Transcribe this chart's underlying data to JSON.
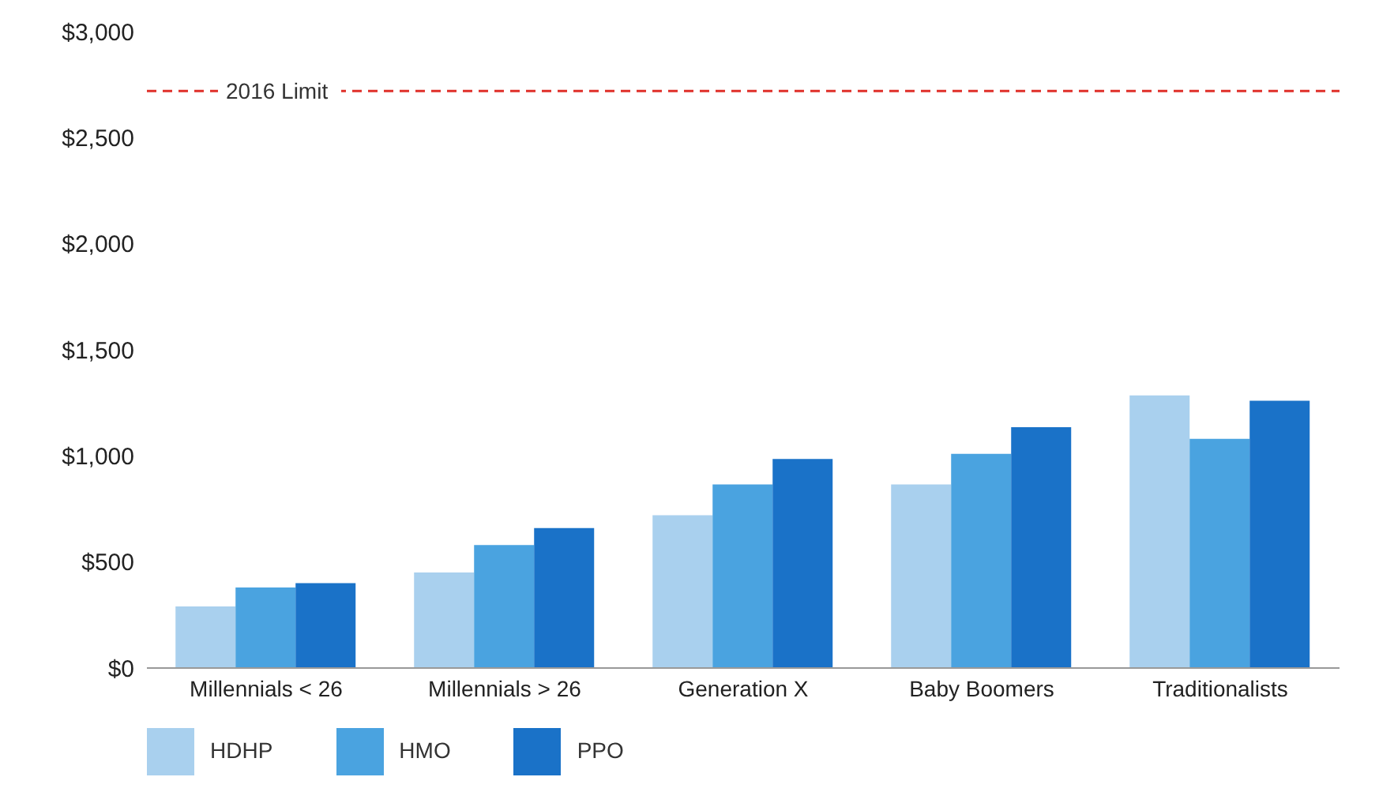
{
  "chart_data": {
    "type": "bar",
    "categories": [
      "Millennials < 26",
      "Millennials > 26",
      "Generation X",
      "Baby Boomers",
      "Traditionalists"
    ],
    "series": [
      {
        "name": "HDHP",
        "color": "#a9d0ee",
        "values": [
          290,
          450,
          720,
          865,
          1285
        ]
      },
      {
        "name": "HMO",
        "color": "#4aa3e0",
        "values": [
          380,
          580,
          865,
          1010,
          1080
        ]
      },
      {
        "name": "PPO",
        "color": "#1a72c8",
        "values": [
          400,
          660,
          985,
          1135,
          1260
        ]
      }
    ],
    "ylim": [
      0,
      3000
    ],
    "yticks": [
      {
        "value": 0,
        "label": "$0"
      },
      {
        "value": 500,
        "label": "$500"
      },
      {
        "value": 1000,
        "label": "$1,000"
      },
      {
        "value": 1500,
        "label": "$1,500"
      },
      {
        "value": 2000,
        "label": "$2,000"
      },
      {
        "value": 2500,
        "label": "$2,500"
      },
      {
        "value": 3000,
        "label": "$3,000"
      }
    ],
    "ref_lines": [
      {
        "axis": "y",
        "value": 2720,
        "label": "2016 Limit",
        "color": "#e0302a",
        "line_style": "dashed"
      }
    ],
    "grid": false,
    "legend": "bottom left"
  }
}
